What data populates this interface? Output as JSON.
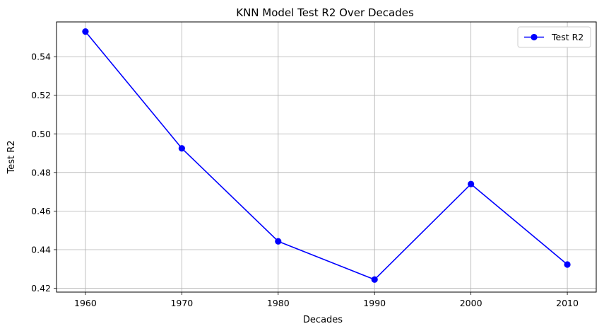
{
  "chart_data": {
    "type": "line",
    "title": "KNN Model Test R2 Over Decades",
    "xlabel": "Decades",
    "ylabel": "Test R2",
    "x": [
      1960,
      1970,
      1980,
      1990,
      2000,
      2010
    ],
    "x_tick_labels": [
      "1960",
      "1970",
      "1980",
      "1990",
      "2000",
      "2010"
    ],
    "xlim": [
      1957,
      2013
    ],
    "ylim": [
      0.418,
      0.558
    ],
    "y_ticks": [
      0.42,
      0.44,
      0.46,
      0.48,
      0.5,
      0.52,
      0.54
    ],
    "y_tick_labels": [
      "0.42",
      "0.44",
      "0.46",
      "0.48",
      "0.50",
      "0.52",
      "0.54"
    ],
    "grid": true,
    "legend_position": "top-right",
    "series": [
      {
        "name": "Test R2",
        "color": "#0000ff",
        "marker": "circle",
        "values": [
          0.553,
          0.4925,
          0.4443,
          0.4245,
          0.474,
          0.4323
        ]
      }
    ]
  }
}
